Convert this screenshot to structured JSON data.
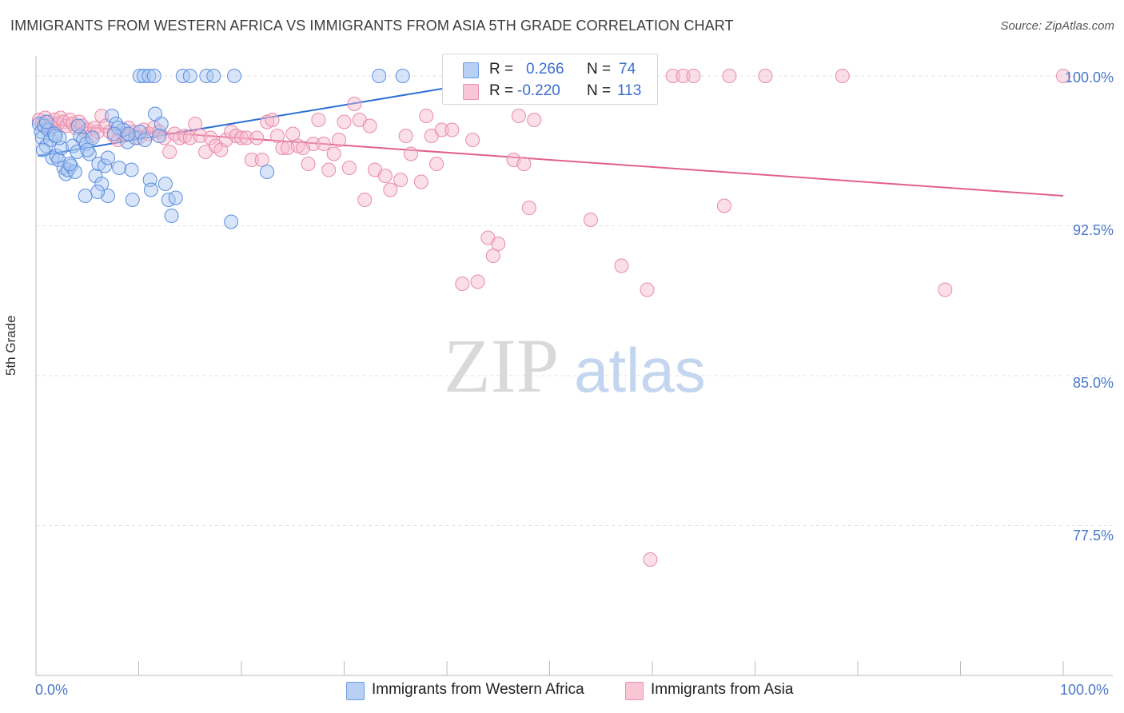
{
  "title": "IMMIGRANTS FROM WESTERN AFRICA VS IMMIGRANTS FROM ASIA 5TH GRADE CORRELATION CHART",
  "source": "Source: ZipAtlas.com",
  "watermark": {
    "zip": "ZIP",
    "atlas": "atlas"
  },
  "legend": {
    "rows": [
      {
        "r_label": "R =",
        "r_value": "0.266",
        "n_label": "N =",
        "n_value": "74"
      },
      {
        "r_label": "R =",
        "r_value": "-0.220",
        "n_label": "N =",
        "n_value": "113"
      }
    ]
  },
  "bottom_legend": [
    "Immigrants from Western Africa",
    "Immigrants from Asia"
  ],
  "colors": {
    "blue_fill": "#a8c6f0",
    "blue_stroke": "#5a8ee0",
    "blue_line": "#2f6fd6",
    "pink_fill": "#f7b8cd",
    "pink_stroke": "#e88aab",
    "pink_line": "#e2608c",
    "tick_text": "#4a78c8",
    "grid": "#e2e2e2"
  },
  "chart_data": {
    "type": "scatter",
    "xlabel": "",
    "ylabel": "5th Grade",
    "xlim": [
      0,
      100
    ],
    "ylim": [
      70.0,
      101.0
    ],
    "x_tick_labels": [
      "0.0%",
      "100.0%"
    ],
    "y_ticks": [
      100.0,
      92.5,
      85.0,
      77.5
    ],
    "y_tick_labels": [
      "100.0%",
      "92.5%",
      "85.0%",
      "77.5%"
    ],
    "grid": true,
    "series": [
      {
        "name": "Immigrants from Western Africa",
        "color": "#5a8ee0",
        "trend": {
          "x": [
            0.2,
            40.0
          ],
          "y": [
            96.0,
            99.4
          ]
        },
        "points": [
          [
            0.3,
            97.6
          ],
          [
            0.5,
            97.2
          ],
          [
            0.6,
            96.9
          ],
          [
            0.8,
            97.5
          ],
          [
            1.0,
            96.5
          ],
          [
            1.2,
            97.3
          ],
          [
            1.4,
            96.8
          ],
          [
            1.6,
            95.9
          ],
          [
            1.8,
            97.1
          ],
          [
            2.0,
            96.0
          ],
          [
            2.2,
            95.8
          ],
          [
            2.5,
            96.4
          ],
          [
            2.7,
            95.4
          ],
          [
            2.9,
            95.1
          ],
          [
            3.1,
            95.3
          ],
          [
            3.4,
            95.5
          ],
          [
            3.6,
            96.5
          ],
          [
            3.8,
            95.2
          ],
          [
            4.0,
            96.2
          ],
          [
            4.3,
            97.0
          ],
          [
            4.6,
            96.8
          ],
          [
            4.9,
            96.6
          ],
          [
            5.2,
            96.1
          ],
          [
            5.5,
            96.9
          ],
          [
            5.8,
            95.0
          ],
          [
            6.1,
            95.6
          ],
          [
            6.4,
            94.6
          ],
          [
            6.7,
            95.5
          ],
          [
            7.0,
            95.9
          ],
          [
            7.4,
            98.0
          ],
          [
            7.8,
            97.6
          ],
          [
            8.1,
            95.4
          ],
          [
            8.5,
            97.3
          ],
          [
            8.9,
            96.7
          ],
          [
            9.3,
            95.3
          ],
          [
            9.7,
            96.9
          ],
          [
            10.1,
            97.2
          ],
          [
            10.6,
            96.8
          ],
          [
            11.1,
            94.8
          ],
          [
            11.6,
            98.1
          ],
          [
            12.2,
            97.6
          ],
          [
            12.6,
            94.6
          ],
          [
            12.9,
            93.8
          ],
          [
            13.2,
            93.0
          ],
          [
            13.6,
            93.9
          ],
          [
            7.0,
            94.0
          ],
          [
            4.8,
            94.0
          ],
          [
            6.0,
            94.2
          ],
          [
            9.4,
            93.8
          ],
          [
            11.2,
            94.3
          ],
          [
            10.1,
            100.0
          ],
          [
            10.5,
            100.0
          ],
          [
            11.0,
            100.0
          ],
          [
            11.5,
            100.0
          ],
          [
            14.3,
            100.0
          ],
          [
            15.0,
            100.0
          ],
          [
            16.6,
            100.0
          ],
          [
            17.3,
            100.0
          ],
          [
            19.3,
            100.0
          ],
          [
            33.4,
            100.0
          ],
          [
            35.7,
            100.0
          ],
          [
            19.0,
            92.7
          ],
          [
            22.5,
            95.2
          ],
          [
            1.0,
            97.7
          ],
          [
            2.3,
            96.9
          ],
          [
            0.7,
            96.3
          ],
          [
            1.9,
            97.0
          ],
          [
            3.3,
            95.6
          ],
          [
            4.1,
            97.5
          ],
          [
            5.0,
            96.3
          ],
          [
            8.0,
            97.4
          ],
          [
            9.0,
            97.1
          ],
          [
            12.0,
            97.0
          ],
          [
            7.6,
            97.1
          ]
        ]
      },
      {
        "name": "Immigrants from Asia",
        "color": "#e88aab",
        "trend": {
          "x": [
            0.2,
            100.0
          ],
          "y": [
            97.6,
            94.0
          ]
        },
        "points": [
          [
            0.3,
            97.8
          ],
          [
            0.6,
            97.6
          ],
          [
            0.9,
            97.9
          ],
          [
            1.2,
            97.7
          ],
          [
            1.5,
            97.5
          ],
          [
            1.8,
            97.8
          ],
          [
            2.1,
            97.6
          ],
          [
            2.4,
            97.9
          ],
          [
            2.7,
            97.7
          ],
          [
            3.0,
            97.5
          ],
          [
            3.3,
            97.8
          ],
          [
            3.6,
            97.6
          ],
          [
            3.9,
            97.4
          ],
          [
            4.2,
            97.7
          ],
          [
            4.5,
            97.5
          ],
          [
            4.8,
            97.2
          ],
          [
            5.1,
            97.3
          ],
          [
            5.4,
            97.0
          ],
          [
            5.7,
            97.4
          ],
          [
            6.0,
            97.2
          ],
          [
            6.4,
            98.0
          ],
          [
            6.8,
            97.5
          ],
          [
            7.2,
            97.2
          ],
          [
            7.6,
            97.0
          ],
          [
            8.0,
            96.8
          ],
          [
            8.5,
            97.1
          ],
          [
            9.0,
            97.4
          ],
          [
            9.5,
            97.2
          ],
          [
            10.0,
            96.9
          ],
          [
            10.5,
            97.3
          ],
          [
            11.0,
            97.1
          ],
          [
            11.5,
            97.4
          ],
          [
            12.0,
            97.2
          ],
          [
            12.5,
            96.9
          ],
          [
            13.0,
            96.2
          ],
          [
            13.5,
            97.1
          ],
          [
            14.0,
            96.9
          ],
          [
            14.5,
            97.0
          ],
          [
            15.0,
            96.9
          ],
          [
            15.5,
            97.6
          ],
          [
            16.0,
            97.0
          ],
          [
            16.5,
            96.2
          ],
          [
            17.0,
            96.9
          ],
          [
            17.5,
            96.5
          ],
          [
            18.0,
            96.3
          ],
          [
            18.5,
            96.8
          ],
          [
            19.0,
            97.2
          ],
          [
            19.5,
            97.0
          ],
          [
            20.0,
            96.9
          ],
          [
            20.5,
            96.9
          ],
          [
            21.0,
            95.8
          ],
          [
            21.5,
            96.9
          ],
          [
            22.0,
            95.8
          ],
          [
            22.5,
            97.7
          ],
          [
            23.0,
            97.8
          ],
          [
            23.5,
            97.0
          ],
          [
            24.0,
            96.4
          ],
          [
            24.5,
            96.4
          ],
          [
            25.0,
            97.1
          ],
          [
            25.5,
            96.5
          ],
          [
            26.0,
            96.4
          ],
          [
            26.5,
            95.6
          ],
          [
            27.0,
            96.6
          ],
          [
            27.5,
            97.8
          ],
          [
            28.0,
            96.6
          ],
          [
            28.5,
            95.3
          ],
          [
            29.0,
            96.1
          ],
          [
            29.5,
            96.8
          ],
          [
            30.0,
            97.7
          ],
          [
            30.5,
            95.4
          ],
          [
            31.0,
            98.6
          ],
          [
            31.5,
            97.8
          ],
          [
            32.0,
            93.8
          ],
          [
            32.5,
            97.5
          ],
          [
            33.0,
            95.3
          ],
          [
            34.0,
            95.0
          ],
          [
            34.5,
            94.3
          ],
          [
            35.5,
            94.8
          ],
          [
            36.0,
            97.0
          ],
          [
            36.5,
            96.1
          ],
          [
            37.5,
            94.7
          ],
          [
            38.0,
            98.0
          ],
          [
            38.5,
            97.0
          ],
          [
            39.0,
            95.6
          ],
          [
            39.5,
            97.3
          ],
          [
            40.5,
            97.3
          ],
          [
            41.5,
            89.6
          ],
          [
            42.5,
            96.8
          ],
          [
            43.0,
            89.7
          ],
          [
            44.0,
            91.9
          ],
          [
            44.5,
            91.0
          ],
          [
            45.0,
            91.6
          ],
          [
            46.5,
            95.8
          ],
          [
            47.0,
            98.0
          ],
          [
            47.5,
            95.6
          ],
          [
            48.0,
            93.4
          ],
          [
            48.5,
            97.8
          ],
          [
            52.0,
            100.0
          ],
          [
            52.5,
            99.4
          ],
          [
            53.5,
            100.0
          ],
          [
            54.0,
            92.8
          ],
          [
            57.0,
            90.5
          ],
          [
            59.5,
            89.3
          ],
          [
            62.0,
            100.0
          ],
          [
            63.0,
            100.0
          ],
          [
            64.0,
            100.0
          ],
          [
            67.0,
            93.5
          ],
          [
            67.5,
            100.0
          ],
          [
            71.0,
            100.0
          ],
          [
            78.5,
            100.0
          ],
          [
            88.5,
            89.3
          ],
          [
            100.0,
            100.0
          ],
          [
            59.8,
            75.8
          ]
        ]
      }
    ]
  }
}
